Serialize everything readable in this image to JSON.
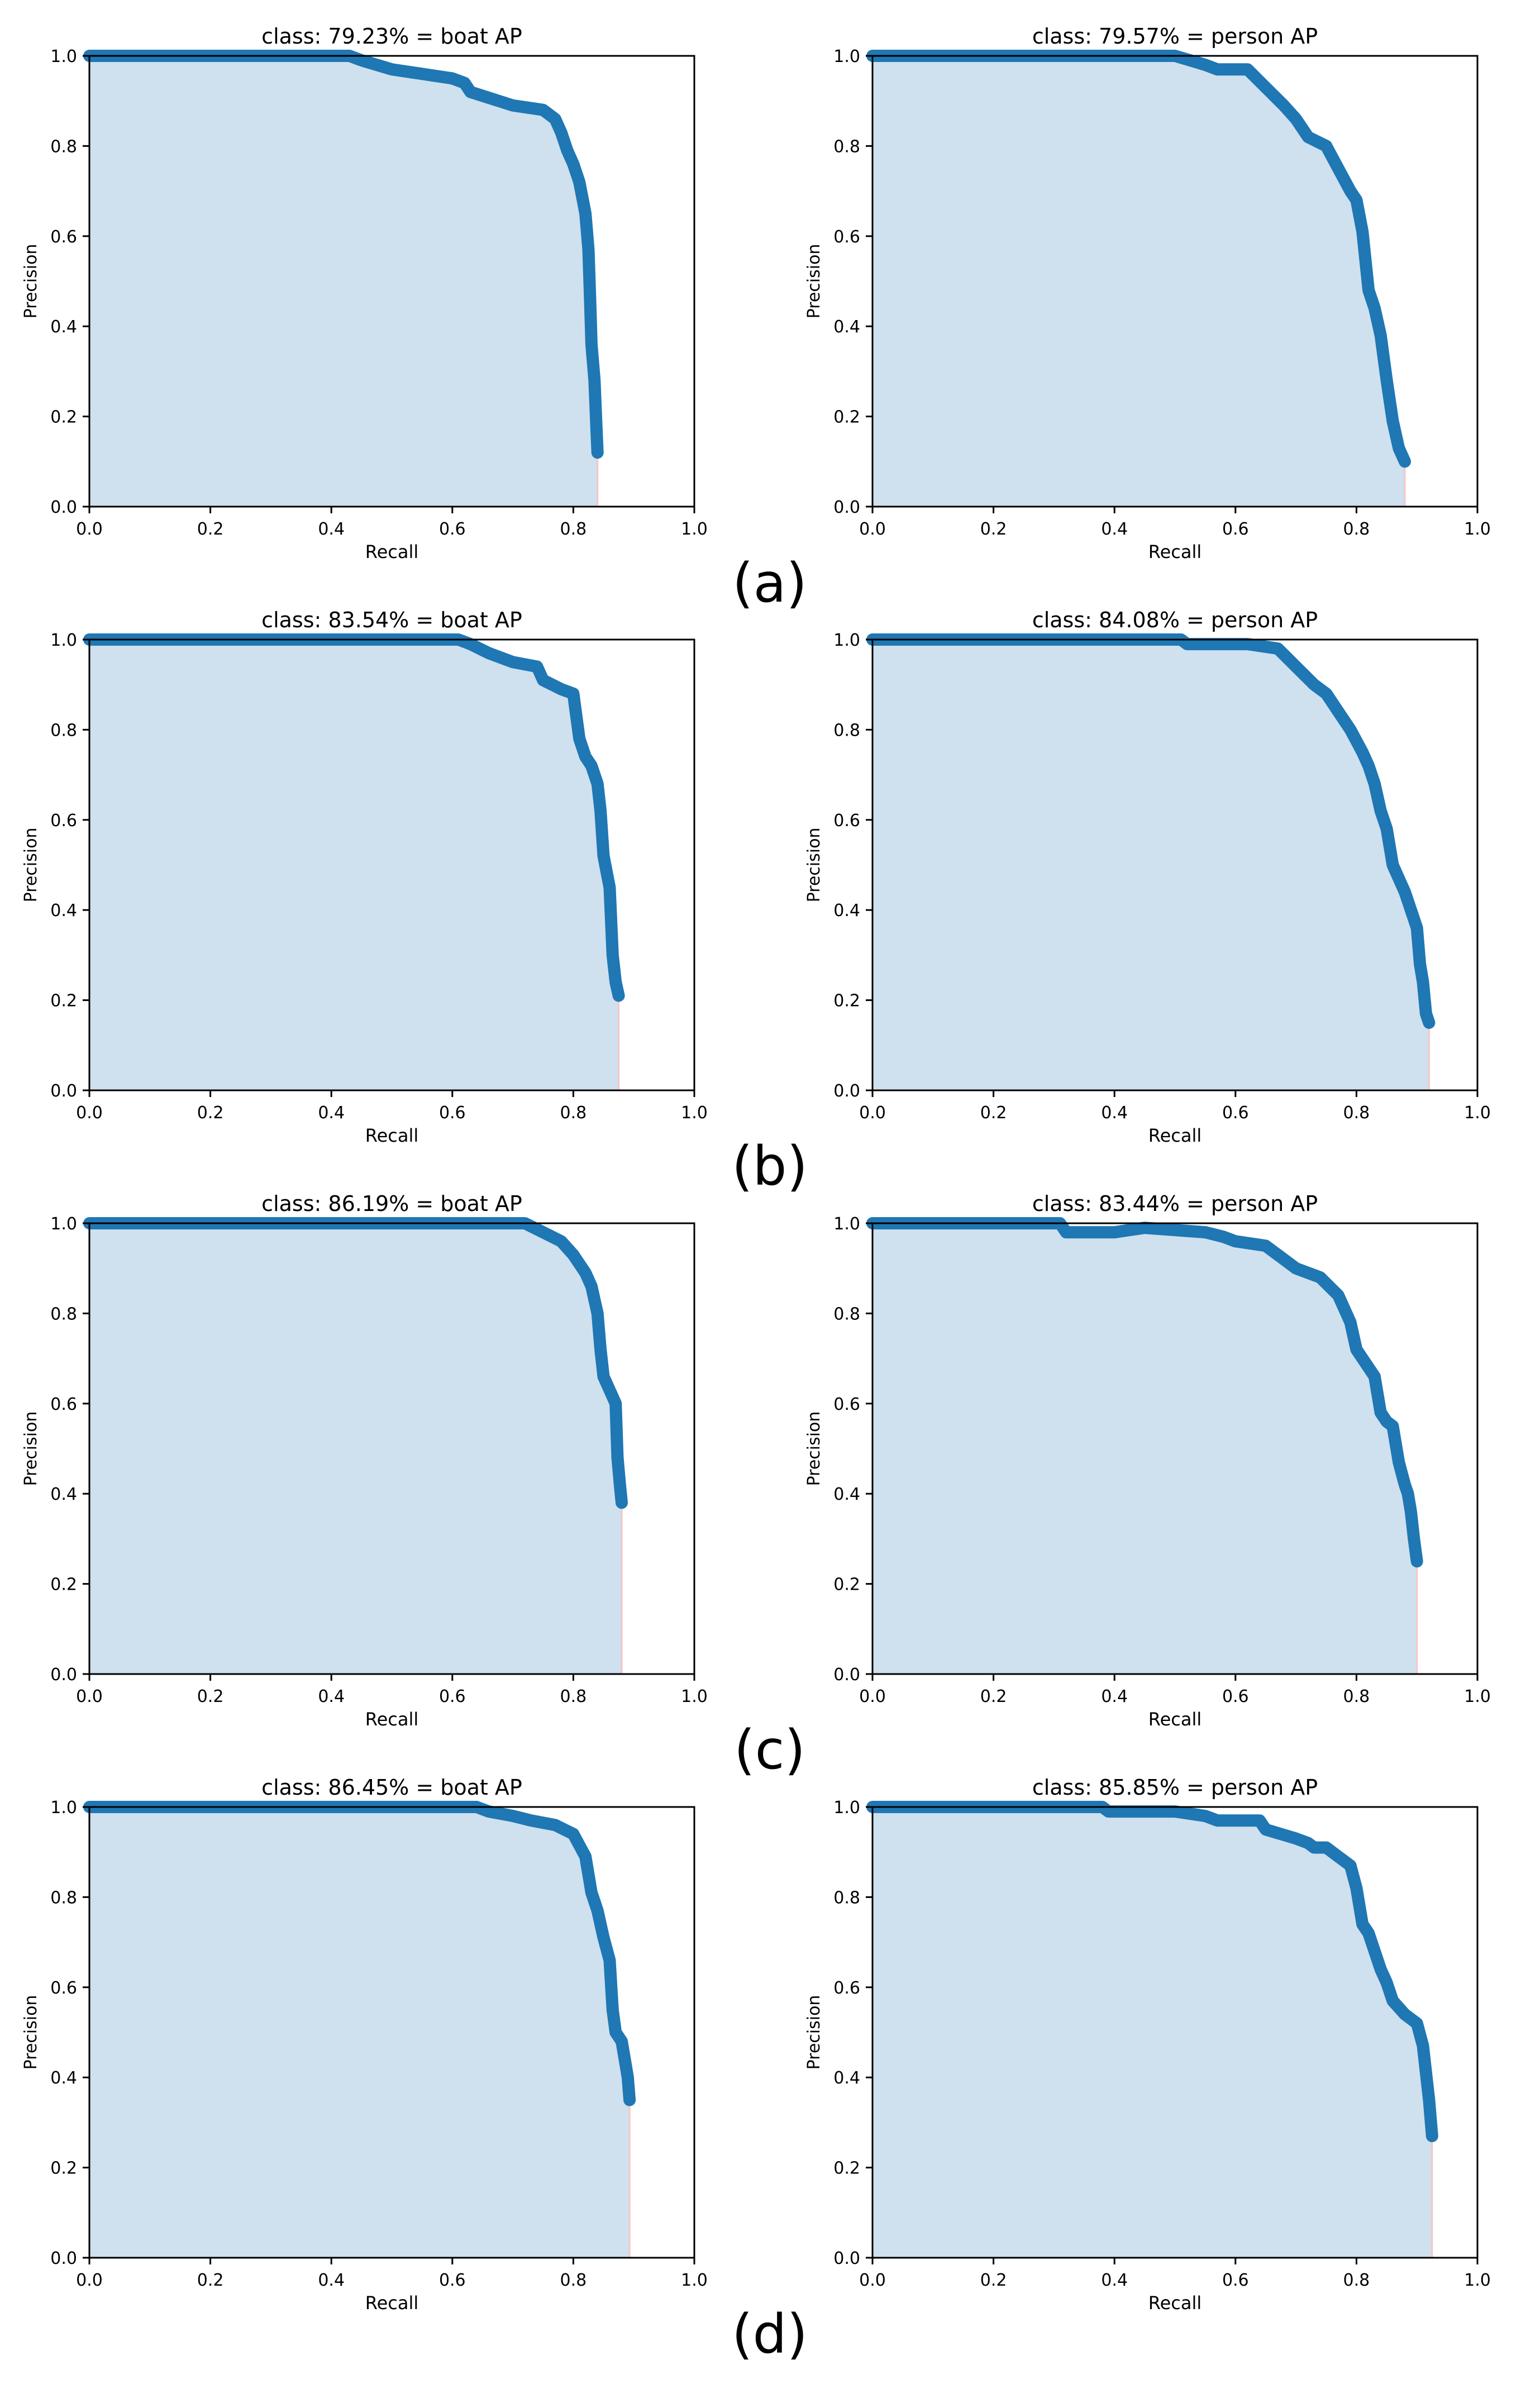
{
  "panel_labels": [
    "(a)",
    "(b)",
    "(c)",
    "(d)"
  ],
  "colors": {
    "line": "#1f77b4",
    "fill": "#cfe0ef",
    "drop": "#f4c6c6"
  },
  "chart_data": [
    {
      "type": "area",
      "title": "class: 79.23% = boat AP",
      "xlabel": "Recall",
      "ylabel": "Precision",
      "xlim": [
        0,
        1
      ],
      "ylim": [
        0,
        1
      ],
      "xticks": [
        "0.0",
        "0.2",
        "0.4",
        "0.6",
        "0.8",
        "1.0"
      ],
      "yticks": [
        "0.0",
        "0.2",
        "0.4",
        "0.6",
        "0.8",
        "1.0"
      ],
      "series": [
        {
          "name": "boat",
          "x": [
            0,
            0.43,
            0.45,
            0.5,
            0.55,
            0.6,
            0.62,
            0.63,
            0.7,
            0.75,
            0.77,
            0.78,
            0.79,
            0.8,
            0.81,
            0.82,
            0.825,
            0.828,
            0.83,
            0.835,
            0.838,
            0.84
          ],
          "y": [
            1.0,
            1.0,
            0.99,
            0.97,
            0.96,
            0.95,
            0.94,
            0.92,
            0.89,
            0.88,
            0.86,
            0.83,
            0.79,
            0.76,
            0.72,
            0.65,
            0.57,
            0.45,
            0.36,
            0.28,
            0.18,
            0.12
          ]
        }
      ]
    },
    {
      "type": "area",
      "title": "class: 79.57% = person AP",
      "xlabel": "Recall",
      "ylabel": "Precision",
      "xlim": [
        0,
        1
      ],
      "ylim": [
        0,
        1
      ],
      "xticks": [
        "0.0",
        "0.2",
        "0.4",
        "0.6",
        "0.8",
        "1.0"
      ],
      "yticks": [
        "0.0",
        "0.2",
        "0.4",
        "0.6",
        "0.8",
        "1.0"
      ],
      "series": [
        {
          "name": "person",
          "x": [
            0,
            0.5,
            0.55,
            0.57,
            0.62,
            0.65,
            0.68,
            0.7,
            0.72,
            0.75,
            0.77,
            0.79,
            0.8,
            0.81,
            0.82,
            0.83,
            0.84,
            0.85,
            0.86,
            0.87,
            0.88
          ],
          "y": [
            1.0,
            1.0,
            0.98,
            0.97,
            0.97,
            0.93,
            0.89,
            0.86,
            0.82,
            0.8,
            0.75,
            0.7,
            0.68,
            0.61,
            0.48,
            0.44,
            0.38,
            0.28,
            0.19,
            0.13,
            0.1
          ]
        }
      ]
    },
    {
      "type": "area",
      "title": "class: 83.54% = boat AP",
      "xlabel": "Recall",
      "ylabel": "Precision",
      "xlim": [
        0,
        1
      ],
      "ylim": [
        0,
        1
      ],
      "xticks": [
        "0.0",
        "0.2",
        "0.4",
        "0.6",
        "0.8",
        "1.0"
      ],
      "yticks": [
        "0.0",
        "0.2",
        "0.4",
        "0.6",
        "0.8",
        "1.0"
      ],
      "series": [
        {
          "name": "boat",
          "x": [
            0,
            0.61,
            0.63,
            0.66,
            0.7,
            0.74,
            0.75,
            0.78,
            0.8,
            0.81,
            0.82,
            0.83,
            0.84,
            0.845,
            0.85,
            0.86,
            0.865,
            0.87,
            0.875
          ],
          "y": [
            1.0,
            1.0,
            0.99,
            0.97,
            0.95,
            0.94,
            0.91,
            0.89,
            0.88,
            0.78,
            0.74,
            0.72,
            0.68,
            0.62,
            0.52,
            0.45,
            0.3,
            0.24,
            0.21
          ]
        }
      ]
    },
    {
      "type": "area",
      "title": "class: 84.08% = person AP",
      "xlabel": "Recall",
      "ylabel": "Precision",
      "xlim": [
        0,
        1
      ],
      "ylim": [
        0,
        1
      ],
      "xticks": [
        "0.0",
        "0.2",
        "0.4",
        "0.6",
        "0.8",
        "1.0"
      ],
      "yticks": [
        "0.0",
        "0.2",
        "0.4",
        "0.6",
        "0.8",
        "1.0"
      ],
      "series": [
        {
          "name": "person",
          "x": [
            0,
            0.51,
            0.52,
            0.62,
            0.67,
            0.7,
            0.73,
            0.75,
            0.77,
            0.79,
            0.81,
            0.82,
            0.83,
            0.84,
            0.85,
            0.86,
            0.87,
            0.88,
            0.89,
            0.9,
            0.905,
            0.91,
            0.915,
            0.92
          ],
          "y": [
            1.0,
            1.0,
            0.99,
            0.99,
            0.98,
            0.94,
            0.9,
            0.88,
            0.84,
            0.8,
            0.75,
            0.72,
            0.68,
            0.62,
            0.58,
            0.5,
            0.47,
            0.44,
            0.4,
            0.36,
            0.28,
            0.24,
            0.17,
            0.15
          ]
        }
      ]
    },
    {
      "type": "area",
      "title": "class: 86.19% = boat AP",
      "xlabel": "Recall",
      "ylabel": "Precision",
      "xlim": [
        0,
        1
      ],
      "ylim": [
        0,
        1
      ],
      "xticks": [
        "0.0",
        "0.2",
        "0.4",
        "0.6",
        "0.8",
        "1.0"
      ],
      "yticks": [
        "0.0",
        "0.2",
        "0.4",
        "0.6",
        "0.8",
        "1.0"
      ],
      "series": [
        {
          "name": "boat",
          "x": [
            0,
            0.72,
            0.75,
            0.78,
            0.8,
            0.81,
            0.82,
            0.83,
            0.84,
            0.845,
            0.85,
            0.86,
            0.87,
            0.873,
            0.877,
            0.88
          ],
          "y": [
            1.0,
            1.0,
            0.98,
            0.96,
            0.93,
            0.91,
            0.89,
            0.86,
            0.8,
            0.72,
            0.66,
            0.63,
            0.6,
            0.48,
            0.42,
            0.38
          ]
        }
      ]
    },
    {
      "type": "area",
      "title": "class: 83.44% = person AP",
      "xlabel": "Recall",
      "ylabel": "Precision",
      "xlim": [
        0,
        1
      ],
      "ylim": [
        0,
        1
      ],
      "xticks": [
        "0.0",
        "0.2",
        "0.4",
        "0.6",
        "0.8",
        "1.0"
      ],
      "yticks": [
        "0.0",
        "0.2",
        "0.4",
        "0.6",
        "0.8",
        "1.0"
      ],
      "series": [
        {
          "name": "person",
          "x": [
            0,
            0.31,
            0.32,
            0.4,
            0.45,
            0.55,
            0.58,
            0.6,
            0.65,
            0.67,
            0.7,
            0.72,
            0.74,
            0.77,
            0.79,
            0.8,
            0.81,
            0.83,
            0.84,
            0.85,
            0.86,
            0.87,
            0.88,
            0.885,
            0.89,
            0.895,
            0.9
          ],
          "y": [
            1.0,
            1.0,
            0.98,
            0.98,
            0.99,
            0.98,
            0.97,
            0.96,
            0.95,
            0.93,
            0.9,
            0.89,
            0.88,
            0.84,
            0.78,
            0.72,
            0.7,
            0.66,
            0.58,
            0.56,
            0.55,
            0.47,
            0.42,
            0.4,
            0.36,
            0.3,
            0.25
          ]
        }
      ]
    },
    {
      "type": "area",
      "title": "class: 86.45% = boat AP",
      "xlabel": "Recall",
      "ylabel": "Precision",
      "xlim": [
        0,
        1
      ],
      "ylim": [
        0,
        1
      ],
      "xticks": [
        "0.0",
        "0.2",
        "0.4",
        "0.6",
        "0.8",
        "1.0"
      ],
      "yticks": [
        "0.0",
        "0.2",
        "0.4",
        "0.6",
        "0.8",
        "1.0"
      ],
      "series": [
        {
          "name": "boat",
          "x": [
            0,
            0.64,
            0.66,
            0.7,
            0.73,
            0.77,
            0.8,
            0.82,
            0.83,
            0.84,
            0.85,
            0.86,
            0.865,
            0.87,
            0.88,
            0.885,
            0.89,
            0.893
          ],
          "y": [
            1.0,
            1.0,
            0.99,
            0.98,
            0.97,
            0.96,
            0.94,
            0.89,
            0.81,
            0.77,
            0.71,
            0.66,
            0.55,
            0.5,
            0.48,
            0.44,
            0.4,
            0.35
          ]
        }
      ]
    },
    {
      "type": "area",
      "title": "class: 85.85% = person AP",
      "xlabel": "Recall",
      "ylabel": "Precision",
      "xlim": [
        0,
        1
      ],
      "ylim": [
        0,
        1
      ],
      "xticks": [
        "0.0",
        "0.2",
        "0.4",
        "0.6",
        "0.8",
        "1.0"
      ],
      "yticks": [
        "0.0",
        "0.2",
        "0.4",
        "0.6",
        "0.8",
        "1.0"
      ],
      "series": [
        {
          "name": "person",
          "x": [
            0,
            0.38,
            0.39,
            0.45,
            0.5,
            0.55,
            0.57,
            0.64,
            0.65,
            0.7,
            0.72,
            0.73,
            0.75,
            0.77,
            0.79,
            0.8,
            0.81,
            0.82,
            0.83,
            0.84,
            0.85,
            0.86,
            0.88,
            0.9,
            0.91,
            0.915,
            0.92,
            0.925
          ],
          "y": [
            1.0,
            1.0,
            0.99,
            0.99,
            0.99,
            0.98,
            0.97,
            0.97,
            0.95,
            0.93,
            0.92,
            0.91,
            0.91,
            0.89,
            0.87,
            0.82,
            0.74,
            0.72,
            0.68,
            0.64,
            0.61,
            0.57,
            0.54,
            0.52,
            0.47,
            0.41,
            0.35,
            0.27
          ]
        }
      ]
    }
  ]
}
